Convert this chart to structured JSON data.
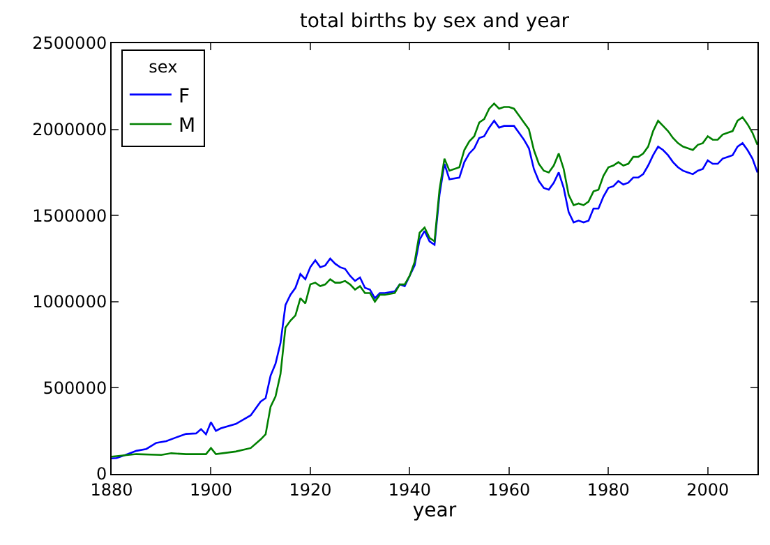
{
  "chart_data": {
    "type": "line",
    "title": "total births by sex and year",
    "xlabel": "year",
    "legend_title": "sex",
    "legend": "top left",
    "grid": false,
    "marker": "none",
    "line_style": "solid",
    "xlim": [
      1880,
      2010
    ],
    "xticks": [
      1880,
      1900,
      1920,
      1940,
      1960,
      1980,
      2000
    ],
    "ylim": [
      0,
      2500000
    ],
    "yticks": [
      0,
      500000,
      1000000,
      1500000,
      2000000,
      2500000
    ],
    "series": [
      {
        "name": "F",
        "color": "#0000ff",
        "x": [
          1880,
          1881,
          1883,
          1885,
          1887,
          1889,
          1891,
          1893,
          1895,
          1897,
          1898,
          1899,
          1900,
          1901,
          1902,
          1905,
          1908,
          1910,
          1911,
          1912,
          1913,
          1914,
          1915,
          1916,
          1917,
          1918,
          1919,
          1920,
          1921,
          1922,
          1923,
          1924,
          1925,
          1926,
          1927,
          1928,
          1929,
          1930,
          1931,
          1932,
          1933,
          1934,
          1935,
          1937,
          1938,
          1939,
          1940,
          1941,
          1942,
          1943,
          1944,
          1945,
          1946,
          1947,
          1948,
          1950,
          1951,
          1952,
          1953,
          1954,
          1955,
          1956,
          1957,
          1958,
          1959,
          1960,
          1961,
          1962,
          1963,
          1964,
          1965,
          1966,
          1967,
          1968,
          1969,
          1970,
          1971,
          1972,
          1973,
          1974,
          1975,
          1976,
          1977,
          1978,
          1979,
          1980,
          1981,
          1982,
          1983,
          1984,
          1985,
          1986,
          1987,
          1988,
          1989,
          1990,
          1991,
          1992,
          1993,
          1994,
          1995,
          1996,
          1997,
          1998,
          1999,
          2000,
          2001,
          2002,
          2003,
          2004,
          2005,
          2006,
          2007,
          2008,
          2009,
          2010
        ],
        "values": [
          90000,
          92000,
          112000,
          134000,
          145000,
          180000,
          190000,
          212000,
          232000,
          235000,
          260000,
          230000,
          300000,
          250000,
          265000,
          290000,
          340000,
          420000,
          440000,
          570000,
          640000,
          760000,
          980000,
          1040000,
          1080000,
          1160000,
          1130000,
          1200000,
          1240000,
          1200000,
          1210000,
          1250000,
          1220000,
          1200000,
          1190000,
          1150000,
          1120000,
          1140000,
          1080000,
          1070000,
          1020000,
          1050000,
          1050000,
          1060000,
          1100000,
          1090000,
          1150000,
          1210000,
          1360000,
          1410000,
          1350000,
          1330000,
          1620000,
          1800000,
          1710000,
          1720000,
          1810000,
          1860000,
          1890000,
          1950000,
          1960000,
          2010000,
          2050000,
          2010000,
          2020000,
          2020000,
          2020000,
          1980000,
          1940000,
          1890000,
          1770000,
          1700000,
          1660000,
          1650000,
          1690000,
          1750000,
          1660000,
          1520000,
          1460000,
          1470000,
          1460000,
          1470000,
          1540000,
          1540000,
          1610000,
          1660000,
          1670000,
          1700000,
          1680000,
          1690000,
          1720000,
          1720000,
          1740000,
          1790000,
          1850000,
          1900000,
          1880000,
          1850000,
          1810000,
          1780000,
          1760000,
          1750000,
          1740000,
          1760000,
          1770000,
          1820000,
          1800000,
          1800000,
          1830000,
          1840000,
          1850000,
          1900000,
          1920000,
          1880000,
          1830000,
          1750000
        ]
      },
      {
        "name": "M",
        "color": "#008000",
        "x": [
          1880,
          1885,
          1890,
          1892,
          1895,
          1899,
          1900,
          1901,
          1905,
          1908,
          1910,
          1911,
          1912,
          1913,
          1914,
          1915,
          1916,
          1917,
          1918,
          1919,
          1920,
          1921,
          1922,
          1923,
          1924,
          1925,
          1926,
          1927,
          1928,
          1929,
          1930,
          1931,
          1932,
          1933,
          1934,
          1935,
          1937,
          1938,
          1939,
          1940,
          1941,
          1942,
          1943,
          1944,
          1945,
          1946,
          1947,
          1948,
          1950,
          1951,
          1952,
          1953,
          1954,
          1955,
          1956,
          1957,
          1958,
          1959,
          1960,
          1961,
          1962,
          1963,
          1964,
          1965,
          1966,
          1967,
          1968,
          1969,
          1970,
          1971,
          1972,
          1973,
          1974,
          1975,
          1976,
          1977,
          1978,
          1979,
          1980,
          1981,
          1982,
          1983,
          1984,
          1985,
          1986,
          1987,
          1988,
          1989,
          1990,
          1991,
          1992,
          1993,
          1994,
          1995,
          1996,
          1997,
          1998,
          1999,
          2000,
          2001,
          2002,
          2003,
          2004,
          2005,
          2006,
          2007,
          2008,
          2009,
          2010
        ],
        "values": [
          100000,
          115000,
          110000,
          120000,
          115000,
          115000,
          150000,
          115000,
          130000,
          150000,
          200000,
          230000,
          390000,
          450000,
          580000,
          850000,
          890000,
          920000,
          1020000,
          990000,
          1100000,
          1110000,
          1090000,
          1100000,
          1130000,
          1110000,
          1110000,
          1120000,
          1100000,
          1070000,
          1090000,
          1050000,
          1050000,
          1000000,
          1040000,
          1040000,
          1050000,
          1100000,
          1100000,
          1150000,
          1230000,
          1400000,
          1430000,
          1370000,
          1350000,
          1650000,
          1830000,
          1760000,
          1780000,
          1880000,
          1930000,
          1960000,
          2040000,
          2060000,
          2120000,
          2150000,
          2120000,
          2130000,
          2130000,
          2120000,
          2080000,
          2040000,
          2000000,
          1880000,
          1800000,
          1760000,
          1750000,
          1790000,
          1860000,
          1770000,
          1620000,
          1560000,
          1570000,
          1560000,
          1580000,
          1640000,
          1650000,
          1730000,
          1780000,
          1790000,
          1810000,
          1790000,
          1800000,
          1840000,
          1840000,
          1860000,
          1900000,
          1990000,
          2050000,
          2020000,
          1990000,
          1950000,
          1920000,
          1900000,
          1890000,
          1880000,
          1910000,
          1920000,
          1960000,
          1940000,
          1940000,
          1970000,
          1980000,
          1990000,
          2050000,
          2070000,
          2030000,
          1980000,
          1910000
        ]
      }
    ]
  }
}
